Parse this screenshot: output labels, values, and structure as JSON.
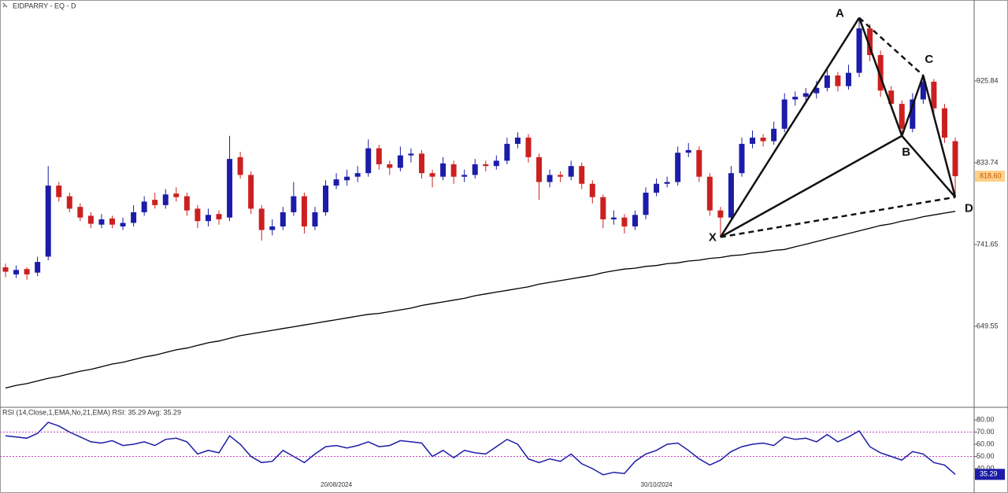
{
  "chart_data": [
    {
      "type": "candlestick",
      "title": "EIDPARRY - EQ - D",
      "categories": [
        null,
        null,
        null,
        null,
        null,
        null,
        null,
        null,
        null,
        null,
        null,
        null,
        null,
        null,
        null,
        null,
        null,
        null,
        null,
        null,
        null,
        null,
        null,
        null,
        null,
        null,
        null,
        null,
        null,
        null,
        null,
        "20/08/2024",
        null,
        null,
        null,
        null,
        null,
        null,
        null,
        null,
        null,
        null,
        null,
        null,
        null,
        null,
        null,
        null,
        null,
        null,
        null,
        null,
        null,
        null,
        null,
        null,
        null,
        null,
        null,
        null,
        null,
        "30/10/2024",
        null,
        null,
        null,
        null,
        null,
        null,
        null,
        null,
        null,
        null,
        null,
        null,
        null,
        null,
        null,
        null,
        null,
        null,
        null,
        null,
        null,
        null,
        null,
        null,
        null,
        null
      ],
      "candles": [
        [
          716,
          720,
          705,
          711
        ],
        [
          708,
          718,
          704,
          713
        ],
        [
          714,
          716,
          702,
          708
        ],
        [
          710,
          728,
          706,
          722
        ],
        [
          728,
          830,
          724,
          808
        ],
        [
          808,
          812,
          790,
          795
        ],
        [
          796,
          800,
          778,
          782
        ],
        [
          784,
          788,
          768,
          772
        ],
        [
          774,
          778,
          760,
          765
        ],
        [
          764,
          776,
          760,
          770
        ],
        [
          771,
          774,
          760,
          764
        ],
        [
          762,
          772,
          758,
          766
        ],
        [
          766,
          786,
          762,
          778
        ],
        [
          778,
          796,
          774,
          790
        ],
        [
          792,
          800,
          782,
          786
        ],
        [
          786,
          804,
          782,
          798
        ],
        [
          799,
          806,
          790,
          795
        ],
        [
          796,
          800,
          774,
          780
        ],
        [
          782,
          786,
          760,
          768
        ],
        [
          768,
          782,
          762,
          775
        ],
        [
          776,
          780,
          764,
          770
        ],
        [
          772,
          864,
          768,
          838
        ],
        [
          840,
          846,
          816,
          820
        ],
        [
          820,
          824,
          776,
          782
        ],
        [
          782,
          786,
          746,
          758
        ],
        [
          758,
          770,
          752,
          762
        ],
        [
          762,
          784,
          758,
          778
        ],
        [
          778,
          812,
          774,
          796
        ],
        [
          796,
          800,
          754,
          762
        ],
        [
          762,
          784,
          758,
          778
        ],
        [
          778,
          814,
          774,
          808
        ],
        [
          808,
          822,
          804,
          815
        ],
        [
          814,
          826,
          808,
          818
        ],
        [
          818,
          830,
          812,
          822
        ],
        [
          822,
          860,
          818,
          850
        ],
        [
          850,
          854,
          826,
          832
        ],
        [
          832,
          836,
          820,
          828
        ],
        [
          828,
          852,
          824,
          842
        ],
        [
          842,
          850,
          834,
          844
        ],
        [
          844,
          848,
          816,
          822
        ],
        [
          822,
          826,
          806,
          818
        ],
        [
          818,
          840,
          814,
          833
        ],
        [
          832,
          836,
          810,
          818
        ],
        [
          818,
          826,
          812,
          820
        ],
        [
          820,
          838,
          816,
          832
        ],
        [
          832,
          836,
          824,
          830
        ],
        [
          830,
          842,
          826,
          836
        ],
        [
          836,
          862,
          832,
          855
        ],
        [
          855,
          868,
          850,
          862
        ],
        [
          862,
          866,
          834,
          840
        ],
        [
          840,
          844,
          792,
          812
        ],
        [
          812,
          826,
          806,
          820
        ],
        [
          820,
          824,
          812,
          818
        ],
        [
          818,
          836,
          814,
          830
        ],
        [
          830,
          834,
          804,
          810
        ],
        [
          810,
          814,
          788,
          795
        ],
        [
          795,
          798,
          760,
          770
        ],
        [
          770,
          780,
          764,
          772
        ],
        [
          772,
          776,
          754,
          762
        ],
        [
          762,
          780,
          758,
          775
        ],
        [
          775,
          806,
          770,
          800
        ],
        [
          800,
          816,
          796,
          810
        ],
        [
          810,
          818,
          806,
          812
        ],
        [
          812,
          852,
          808,
          845
        ],
        [
          845,
          856,
          840,
          848
        ],
        [
          848,
          852,
          812,
          818
        ],
        [
          818,
          822,
          774,
          780
        ],
        [
          780,
          784,
          750,
          772
        ],
        [
          772,
          830,
          768,
          822
        ],
        [
          822,
          862,
          818,
          855
        ],
        [
          855,
          870,
          850,
          862
        ],
        [
          862,
          866,
          852,
          858
        ],
        [
          858,
          880,
          854,
          872
        ],
        [
          872,
          912,
          868,
          905
        ],
        [
          905,
          914,
          898,
          908
        ],
        [
          908,
          918,
          900,
          912
        ],
        [
          912,
          926,
          906,
          918
        ],
        [
          918,
          940,
          914,
          932
        ],
        [
          932,
          936,
          914,
          920
        ],
        [
          920,
          944,
          916,
          935
        ],
        [
          935,
          997,
          930,
          985
        ],
        [
          985,
          990,
          948,
          955
        ],
        [
          955,
          960,
          908,
          915
        ],
        [
          915,
          920,
          894,
          900
        ],
        [
          900,
          904,
          864,
          872
        ],
        [
          872,
          912,
          868,
          905
        ],
        [
          905,
          932,
          900,
          925
        ],
        [
          925,
          928,
          888,
          895
        ],
        [
          895,
          900,
          856,
          862
        ],
        [
          858,
          862,
          795,
          818.6
        ]
      ],
      "up_color": "#1c1ca8",
      "down_color": "#cc2020",
      "moving_average": {
        "color": "#000000",
        "values": [
          580,
          583,
          585,
          588,
          591,
          593,
          596,
          599,
          601,
          604,
          607,
          609,
          612,
          615,
          617,
          620,
          623,
          625,
          628,
          631,
          633,
          636,
          639,
          641,
          643,
          645,
          647,
          649,
          651,
          653,
          655,
          657,
          659,
          661,
          663,
          664,
          666,
          668,
          670,
          673,
          675,
          677,
          679,
          681,
          684,
          686,
          688,
          690,
          692,
          694,
          697,
          699,
          701,
          703,
          705,
          707,
          710,
          712,
          714,
          715,
          717,
          718,
          720,
          721,
          723,
          724,
          726,
          727,
          729,
          730,
          732,
          733,
          735,
          736,
          739,
          742,
          745,
          748,
          751,
          754,
          757,
          760,
          763,
          765,
          768,
          770,
          773,
          775,
          777,
          779
        ]
      },
      "pattern": [
        {
          "label": "X",
          "index": 67,
          "value": 750
        },
        {
          "label": "A",
          "index": 80,
          "value": 997
        },
        {
          "label": "B",
          "index": 84,
          "value": 864
        },
        {
          "label": "C",
          "index": 86,
          "value": 932
        },
        {
          "label": "D",
          "index": 89,
          "value": 795
        }
      ],
      "last_value": {
        "value": 818.6,
        "label": "818.60"
      },
      "ylim": [
        559.2,
        1017.0
      ],
      "yticks": [
        649.55,
        741.65,
        833.74,
        925.84
      ]
    },
    {
      "type": "line",
      "title": "RSI (14,Close,1,EMA,No,21,EMA) RSI: 35.29 Avg: 35.29",
      "color": "#1c1ca8",
      "values": [
        67,
        66,
        65,
        69,
        78,
        75,
        70,
        66,
        62,
        61,
        63,
        59,
        60,
        62,
        59,
        64,
        65,
        62,
        52,
        55,
        53,
        67,
        60,
        50,
        45,
        46,
        55,
        50,
        45,
        52,
        58,
        59,
        57,
        59,
        62,
        58,
        59,
        63,
        62,
        61,
        50,
        55,
        49,
        55,
        53,
        52,
        58,
        64,
        60,
        48,
        45,
        48,
        46,
        52,
        44,
        40,
        35,
        37,
        36,
        46,
        52,
        55,
        60,
        61,
        55,
        48,
        43,
        47,
        54,
        58,
        60,
        61,
        59,
        66,
        64,
        65,
        62,
        68,
        62,
        66,
        71,
        58,
        53,
        50,
        47,
        54,
        52,
        45,
        43,
        35.29
      ],
      "levels": [
        70,
        50
      ],
      "level_color": "#c040c0",
      "last_value": {
        "value": 35.29,
        "label": "35.29"
      },
      "ylim": [
        20,
        89.7
      ],
      "yticks": [
        {
          "value": 40,
          "label": "40.00"
        },
        {
          "value": 50,
          "label": "50.00"
        },
        {
          "value": 60,
          "label": "60.00"
        },
        {
          "value": 70,
          "label": "70.00"
        },
        {
          "value": 80,
          "label": "80.00"
        }
      ]
    }
  ]
}
